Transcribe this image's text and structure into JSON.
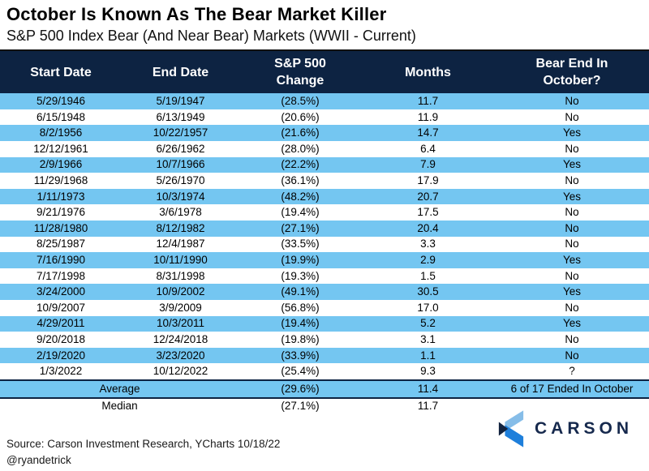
{
  "title": "October Is Known As The Bear Market Killer",
  "subtitle": "S&P 500 Index Bear (And Near Bear) Markets (WWII - Current)",
  "chart_data": {
    "type": "table",
    "title": "October Is Known As The Bear Market Killer",
    "subtitle": "S&P 500 Index Bear (And Near Bear) Markets (WWII - Current)",
    "columns": [
      "Start Date",
      "End Date",
      "S&P 500\nChange",
      "Months",
      "Bear End In\nOctober?"
    ],
    "rows": [
      [
        "5/29/1946",
        "5/19/1947",
        "(28.5%)",
        "11.7",
        "No"
      ],
      [
        "6/15/1948",
        "6/13/1949",
        "(20.6%)",
        "11.9",
        "No"
      ],
      [
        "8/2/1956",
        "10/22/1957",
        "(21.6%)",
        "14.7",
        "Yes"
      ],
      [
        "12/12/1961",
        "6/26/1962",
        "(28.0%)",
        "6.4",
        "No"
      ],
      [
        "2/9/1966",
        "10/7/1966",
        "(22.2%)",
        "7.9",
        "Yes"
      ],
      [
        "11/29/1968",
        "5/26/1970",
        "(36.1%)",
        "17.9",
        "No"
      ],
      [
        "1/11/1973",
        "10/3/1974",
        "(48.2%)",
        "20.7",
        "Yes"
      ],
      [
        "9/21/1976",
        "3/6/1978",
        "(19.4%)",
        "17.5",
        "No"
      ],
      [
        "11/28/1980",
        "8/12/1982",
        "(27.1%)",
        "20.4",
        "No"
      ],
      [
        "8/25/1987",
        "12/4/1987",
        "(33.5%)",
        "3.3",
        "No"
      ],
      [
        "7/16/1990",
        "10/11/1990",
        "(19.9%)",
        "2.9",
        "Yes"
      ],
      [
        "7/17/1998",
        "8/31/1998",
        "(19.3%)",
        "1.5",
        "No"
      ],
      [
        "3/24/2000",
        "10/9/2002",
        "(49.1%)",
        "30.5",
        "Yes"
      ],
      [
        "10/9/2007",
        "3/9/2009",
        "(56.8%)",
        "17.0",
        "No"
      ],
      [
        "4/29/2011",
        "10/3/2011",
        "(19.4%)",
        "5.2",
        "Yes"
      ],
      [
        "9/20/2018",
        "12/24/2018",
        "(19.8%)",
        "3.1",
        "No"
      ],
      [
        "2/19/2020",
        "3/23/2020",
        "(33.9%)",
        "1.1",
        "No"
      ],
      [
        "1/3/2022",
        "10/12/2022",
        "(25.4%)",
        "9.3",
        "?"
      ]
    ],
    "summary": {
      "average": {
        "label": "Average",
        "change": "(29.6%)",
        "months": "11.4",
        "note": "6 of 17 Ended In October"
      },
      "median": {
        "label": "Median",
        "change": "(27.1%)",
        "months": "11.7",
        "note": ""
      }
    },
    "colors": {
      "header_bg": "#0d2342",
      "row_stripe_blue": "#74c6f1",
      "negative_red": "#c00000"
    }
  },
  "footer": {
    "source": "Source: Carson Investment Research, YCharts 10/18/22",
    "handle": "@ryandetrick"
  },
  "logo": {
    "text": "CARSON"
  }
}
